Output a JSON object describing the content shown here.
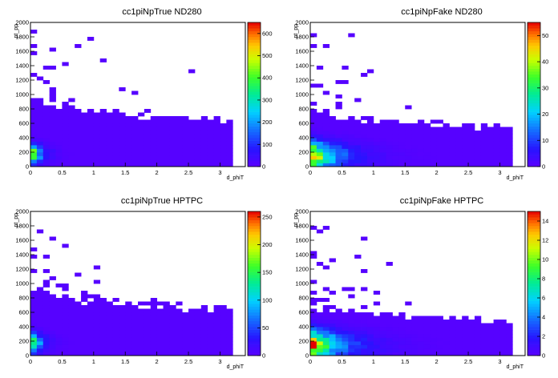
{
  "chart_data": [
    {
      "type": "heatmap",
      "title": "cc1piNpTrue ND280",
      "xlabel": "d_phiT",
      "ylabel": "pt_pp",
      "xlim": [
        0,
        3.4
      ],
      "ylim": [
        0,
        2000
      ],
      "x_ticks": [
        0,
        0.5,
        1,
        1.5,
        2,
        2.5,
        3
      ],
      "x_tick_labels": [
        "0",
        "0.5",
        "1",
        "1.5",
        "2",
        "2.5",
        "3"
      ],
      "y_ticks": [
        0,
        200,
        400,
        600,
        800,
        1000,
        1200,
        1400,
        1600,
        1800,
        2000
      ],
      "y_tick_labels": [
        "0",
        "200",
        "400",
        "600",
        "800",
        "1000",
        "1200",
        "1400",
        "1600",
        "1800",
        "2000"
      ],
      "z_ticks": [
        0,
        100,
        200,
        300,
        400,
        500,
        600
      ],
      "z_tick_labels": [
        "0",
        "100",
        "200",
        "300",
        "400",
        "500",
        "600"
      ],
      "zmax": 650,
      "bins": {
        "x_bin_width": 0.1,
        "y_bin_width": 50,
        "x_max": 3.15,
        "peak_value": 640,
        "x_decay": 0.12,
        "y_peak": 180,
        "y_decay": 120,
        "fill_threshold": 2,
        "tail_y_max": 850,
        "sparse_y_max": 1950
      },
      "grid": false,
      "colorbar": "right"
    },
    {
      "type": "heatmap",
      "title": "cc1piNpFake ND280",
      "xlabel": "d_phiT",
      "ylabel": "pt_pp",
      "xlim": [
        0,
        3.4
      ],
      "ylim": [
        0,
        2000
      ],
      "x_ticks": [
        0,
        0.5,
        1,
        1.5,
        2,
        2.5,
        3
      ],
      "x_tick_labels": [
        "0",
        "0.5",
        "1",
        "1.5",
        "2",
        "2.5",
        "3"
      ],
      "y_ticks": [
        0,
        200,
        400,
        600,
        800,
        1000,
        1200,
        1400,
        1600,
        1800,
        2000
      ],
      "y_tick_labels": [
        "0",
        "200",
        "400",
        "600",
        "800",
        "1000",
        "1200",
        "1400",
        "1600",
        "1800",
        "2000"
      ],
      "z_ticks": [
        0,
        10,
        20,
        30,
        40,
        50
      ],
      "z_tick_labels": [
        "0",
        "10",
        "20",
        "30",
        "40",
        "50"
      ],
      "zmax": 55,
      "bins": {
        "x_bin_width": 0.1,
        "y_bin_width": 50,
        "x_max": 3.15,
        "peak_value": 54,
        "x_decay": 0.35,
        "y_peak": 150,
        "y_decay": 180,
        "fill_threshold": 1,
        "tail_y_max": 700,
        "sparse_y_max": 1950
      },
      "grid": false,
      "colorbar": "right"
    },
    {
      "type": "heatmap",
      "title": "cc1piNpTrue HPTPC",
      "xlabel": "d_phiT",
      "ylabel": "pt_pp",
      "xlim": [
        0,
        3.4
      ],
      "ylim": [
        0,
        2000
      ],
      "x_ticks": [
        0,
        0.5,
        1,
        1.5,
        2,
        2.5,
        3
      ],
      "x_tick_labels": [
        "0",
        "0.5",
        "1",
        "1.5",
        "2",
        "2.5",
        "3"
      ],
      "y_ticks": [
        0,
        200,
        400,
        600,
        800,
        1000,
        1200,
        1400,
        1600,
        1800,
        2000
      ],
      "y_tick_labels": [
        "0",
        "200",
        "400",
        "600",
        "800",
        "1000",
        "1200",
        "1400",
        "1600",
        "1800",
        "2000"
      ],
      "z_ticks": [
        0,
        50,
        100,
        150,
        200,
        250
      ],
      "z_tick_labels": [
        "0",
        "50",
        "100",
        "150",
        "200",
        "250"
      ],
      "zmax": 260,
      "bins": {
        "x_bin_width": 0.1,
        "y_bin_width": 50,
        "x_max": 3.15,
        "peak_value": 255,
        "x_decay": 0.12,
        "y_peak": 180,
        "y_decay": 120,
        "fill_threshold": 1,
        "tail_y_max": 850,
        "sparse_y_max": 1950
      },
      "grid": false,
      "colorbar": "right"
    },
    {
      "type": "heatmap",
      "title": "cc1piNpFake HPTPC",
      "xlabel": "d_phiT",
      "ylabel": "pt_pp",
      "xlim": [
        0,
        3.4
      ],
      "ylim": [
        0,
        2000
      ],
      "x_ticks": [
        0,
        0.5,
        1,
        1.5,
        2,
        2.5,
        3
      ],
      "x_tick_labels": [
        "0",
        "0.5",
        "1",
        "1.5",
        "2",
        "2.5",
        "3"
      ],
      "y_ticks": [
        0,
        200,
        400,
        600,
        800,
        1000,
        1200,
        1400,
        1600,
        1800,
        2000
      ],
      "y_tick_labels": [
        "0",
        "200",
        "400",
        "600",
        "800",
        "1000",
        "1200",
        "1400",
        "1600",
        "1800",
        "2000"
      ],
      "z_ticks": [
        0,
        2,
        4,
        6,
        8,
        10,
        12,
        14
      ],
      "z_tick_labels": [
        "0",
        "2",
        "4",
        "6",
        "8",
        "10",
        "12",
        "14"
      ],
      "zmax": 15,
      "bins": {
        "x_bin_width": 0.1,
        "y_bin_width": 50,
        "x_max": 3.15,
        "peak_value": 14.5,
        "x_decay": 0.4,
        "y_peak": 150,
        "y_decay": 190,
        "fill_threshold": 0.5,
        "tail_y_max": 650,
        "sparse_y_max": 1950
      },
      "grid": false,
      "colorbar": "right"
    }
  ]
}
